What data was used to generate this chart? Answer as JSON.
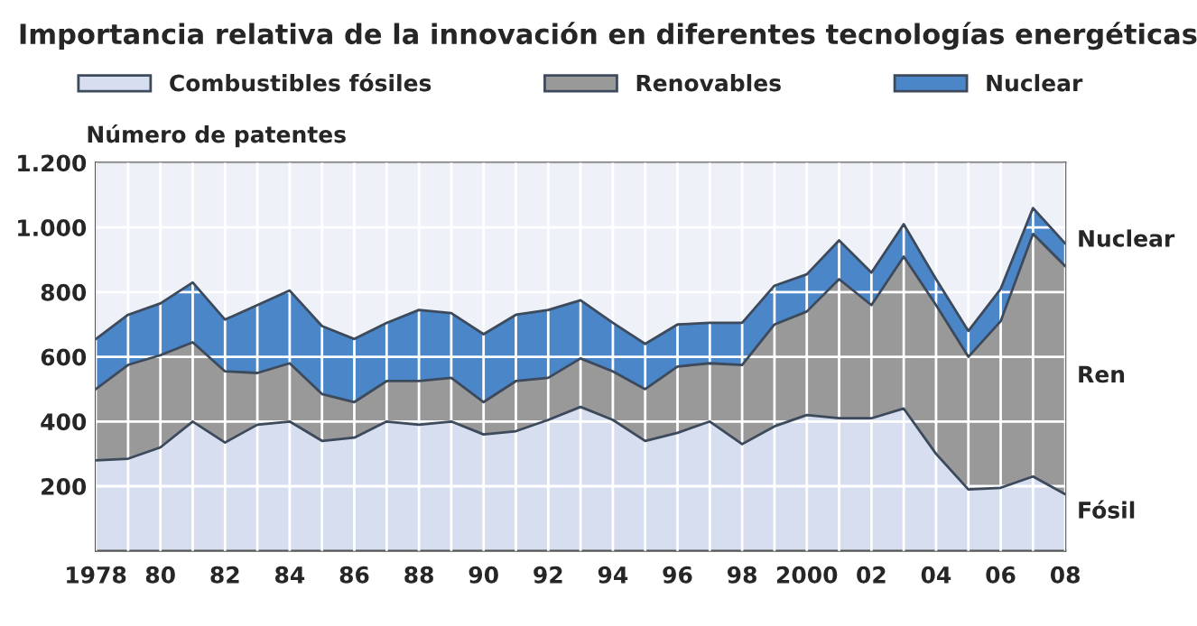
{
  "chart_data": {
    "type": "area",
    "stacked": true,
    "title": "Importancia relativa de la innovación en diferentes tecnologías energéticas",
    "ylabel": "Número de patentes",
    "x": [
      1978,
      1979,
      1980,
      1981,
      1982,
      1983,
      1984,
      1985,
      1986,
      1987,
      1988,
      1989,
      1990,
      1991,
      1992,
      1993,
      1994,
      1995,
      1996,
      1997,
      1998,
      1999,
      2000,
      2001,
      2002,
      2003,
      2004,
      2005,
      2006,
      2007,
      2008
    ],
    "series": [
      {
        "name": "Combustibles fósiles",
        "color": "#d6def0",
        "values": [
          280,
          285,
          320,
          400,
          335,
          390,
          400,
          340,
          350,
          400,
          390,
          400,
          360,
          370,
          405,
          445,
          405,
          340,
          365,
          400,
          330,
          385,
          420,
          410,
          410,
          440,
          300,
          190,
          195,
          230,
          175
        ]
      },
      {
        "name": "Renovables",
        "color": "#999999",
        "values": [
          220,
          290,
          285,
          245,
          220,
          160,
          180,
          145,
          110,
          125,
          135,
          135,
          100,
          155,
          130,
          150,
          150,
          160,
          205,
          180,
          245,
          315,
          320,
          430,
          350,
          470,
          460,
          410,
          515,
          750,
          705
        ]
      },
      {
        "name": "Nuclear",
        "color": "#4a86c8",
        "values": [
          155,
          155,
          160,
          185,
          160,
          210,
          225,
          210,
          195,
          180,
          220,
          200,
          210,
          205,
          210,
          180,
          150,
          140,
          130,
          125,
          130,
          120,
          115,
          120,
          100,
          100,
          80,
          80,
          100,
          80,
          70
        ]
      }
    ],
    "xlim": [
      1978,
      2008
    ],
    "xticks": [
      {
        "value": 1978,
        "label": "1978"
      },
      {
        "value": 1979,
        "label": null
      },
      {
        "value": 1980,
        "label": "80"
      },
      {
        "value": 1981,
        "label": null
      },
      {
        "value": 1982,
        "label": "82"
      },
      {
        "value": 1983,
        "label": null
      },
      {
        "value": 1984,
        "label": "84"
      },
      {
        "value": 1985,
        "label": null
      },
      {
        "value": 1986,
        "label": "86"
      },
      {
        "value": 1987,
        "label": null
      },
      {
        "value": 1988,
        "label": "88"
      },
      {
        "value": 1989,
        "label": null
      },
      {
        "value": 1990,
        "label": "90"
      },
      {
        "value": 1991,
        "label": null
      },
      {
        "value": 1992,
        "label": "92"
      },
      {
        "value": 1993,
        "label": null
      },
      {
        "value": 1994,
        "label": "94"
      },
      {
        "value": 1995,
        "label": null
      },
      {
        "value": 1996,
        "label": "96"
      },
      {
        "value": 1997,
        "label": null
      },
      {
        "value": 1998,
        "label": "98"
      },
      {
        "value": 1999,
        "label": null
      },
      {
        "value": 2000,
        "label": "2000"
      },
      {
        "value": 2001,
        "label": null
      },
      {
        "value": 2002,
        "label": "02"
      },
      {
        "value": 2003,
        "label": null
      },
      {
        "value": 2004,
        "label": "04"
      },
      {
        "value": 2005,
        "label": null
      },
      {
        "value": 2006,
        "label": "06"
      },
      {
        "value": 2007,
        "label": null
      },
      {
        "value": 2008,
        "label": "08"
      }
    ],
    "ylim": [
      0,
      1200
    ],
    "yticks": [
      200,
      400,
      600,
      800,
      {
        "value": 1000,
        "label": "1.000"
      },
      {
        "value": 1200,
        "label": "1.200"
      }
    ],
    "grid": true,
    "legend": "top",
    "annotations": [
      "Nuclear",
      "Ren",
      "Fósil"
    ]
  }
}
